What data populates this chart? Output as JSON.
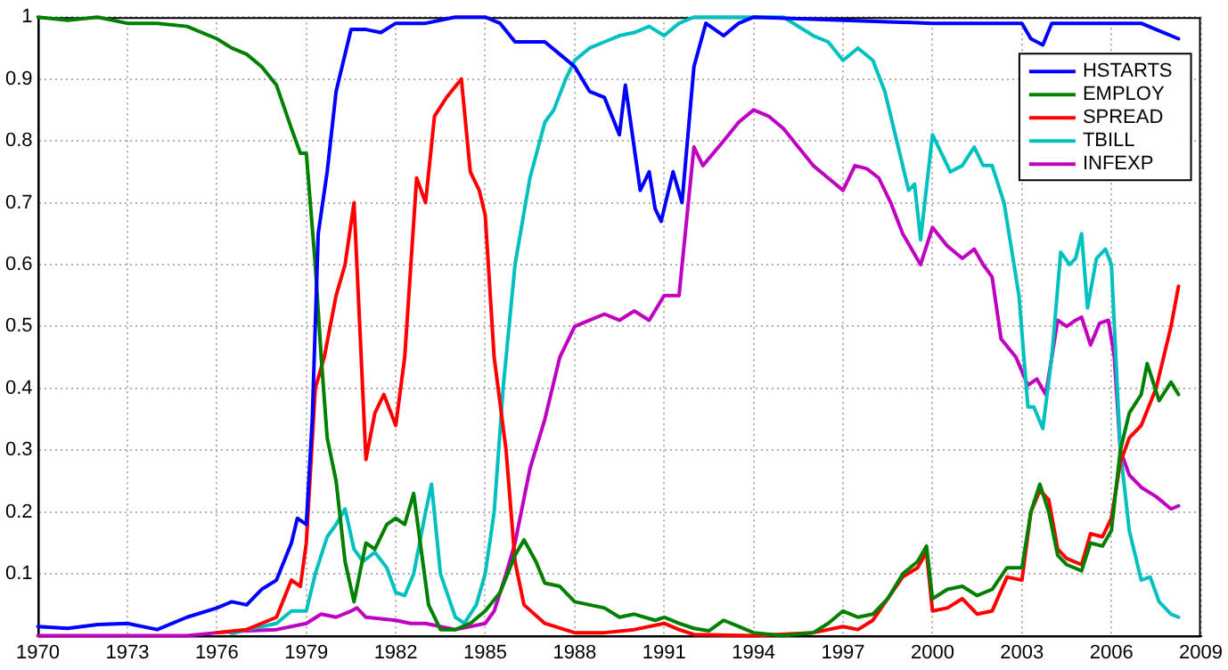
{
  "chart_data": {
    "type": "line",
    "xlim": [
      1970,
      2009
    ],
    "xticks": [
      1970,
      1973,
      1976,
      1979,
      1982,
      1985,
      1988,
      1991,
      1994,
      1997,
      2000,
      2003,
      2006,
      {
        "value": 2009,
        "label": "2009"
      }
    ],
    "ylim": [
      0,
      1
    ],
    "yticks": [
      {
        "value": 0,
        "label": null
      },
      0.1,
      0.2,
      0.3,
      0.4,
      0.5,
      0.6,
      0.7,
      0.8,
      0.9,
      1
    ],
    "grid": true,
    "legend": "top right",
    "marker": "none",
    "line_style": "solid",
    "series": [
      {
        "name": "HSTARTS",
        "color": "#0000ff",
        "x": [
          1970,
          1971,
          1972,
          1973,
          1974,
          1975,
          1976,
          1976.5,
          1977,
          1977.5,
          1978,
          1978.5,
          1978.7,
          1979,
          1979.2,
          1979.4,
          1979.7,
          1980,
          1980.5,
          1981,
          1981.5,
          1982,
          1983,
          1984,
          1985,
          1985.5,
          1986,
          1987,
          1987.5,
          1988,
          1988.5,
          1989,
          1989.5,
          1989.7,
          1990.2,
          1990.5,
          1990.7,
          1990.9,
          1991.3,
          1991.6,
          1992,
          1992.4,
          1993,
          1993.5,
          1994,
          2000,
          2003,
          2003.3,
          2003.7,
          2004,
          2007,
          2007.5,
          2008.25
        ],
        "values": [
          0.015,
          0.012,
          0.018,
          0.02,
          0.01,
          0.03,
          0.045,
          0.055,
          0.05,
          0.075,
          0.09,
          0.15,
          0.19,
          0.18,
          0.35,
          0.65,
          0.75,
          0.88,
          0.98,
          0.98,
          0.975,
          0.99,
          0.99,
          1,
          1,
          0.99,
          0.96,
          0.96,
          0.94,
          0.92,
          0.88,
          0.87,
          0.81,
          0.89,
          0.72,
          0.75,
          0.69,
          0.67,
          0.75,
          0.7,
          0.92,
          0.99,
          0.97,
          0.99,
          1,
          0.99,
          0.99,
          0.965,
          0.955,
          0.99,
          0.99,
          0.98,
          0.965
        ]
      },
      {
        "name": "EMPLOY",
        "color": "#008000",
        "x": [
          1970,
          1971,
          1972,
          1973,
          1974,
          1975,
          1976,
          1976.5,
          1977,
          1977.5,
          1978,
          1978.5,
          1978.8,
          1979,
          1979.3,
          1979.5,
          1979.7,
          1980,
          1980.3,
          1980.6,
          1981,
          1981.3,
          1981.7,
          1982,
          1982.3,
          1982.6,
          1983.1,
          1983.5,
          1984,
          1984.5,
          1985,
          1985.5,
          1986,
          1986.3,
          1986.7,
          1987,
          1987.5,
          1988,
          1989,
          1989.5,
          1990,
          1990.7,
          1991,
          1991.5,
          1992,
          1992.5,
          1993,
          1993.5,
          1994,
          1995,
          1996,
          1996.5,
          1997,
          1997.5,
          1998,
          1998.5,
          1999,
          1999.5,
          1999.8,
          2000,
          2000.5,
          2001,
          2001.5,
          2002,
          2002.5,
          2003,
          2003.3,
          2003.6,
          2003.9,
          2004.2,
          2004.5,
          2005,
          2005.3,
          2005.7,
          2006,
          2006.3,
          2006.6,
          2007,
          2007.2,
          2007.6,
          2008,
          2008.25
        ],
        "values": [
          1,
          0.995,
          1,
          0.99,
          0.99,
          0.985,
          0.965,
          0.95,
          0.94,
          0.92,
          0.89,
          0.82,
          0.78,
          0.78,
          0.6,
          0.45,
          0.32,
          0.25,
          0.12,
          0.055,
          0.15,
          0.14,
          0.18,
          0.19,
          0.18,
          0.23,
          0.05,
          0.01,
          0.01,
          0.02,
          0.04,
          0.07,
          0.13,
          0.155,
          0.12,
          0.085,
          0.08,
          0.055,
          0.045,
          0.03,
          0.035,
          0.025,
          0.03,
          0.02,
          0.012,
          0.008,
          0.025,
          0.015,
          0.005,
          0,
          0.005,
          0.02,
          0.04,
          0.03,
          0.035,
          0.06,
          0.1,
          0.12,
          0.145,
          0.06,
          0.075,
          0.08,
          0.065,
          0.075,
          0.11,
          0.11,
          0.2,
          0.245,
          0.2,
          0.13,
          0.115,
          0.105,
          0.15,
          0.145,
          0.17,
          0.3,
          0.36,
          0.39,
          0.44,
          0.38,
          0.41,
          0.39
        ]
      },
      {
        "name": "SPREAD",
        "color": "#ff0000",
        "x": [
          1976,
          1977,
          1978,
          1978.5,
          1978.8,
          1979,
          1979.3,
          1979.6,
          1980,
          1980.3,
          1980.6,
          1981,
          1981.3,
          1981.6,
          1982,
          1982.3,
          1982.7,
          1983,
          1983.3,
          1983.7,
          1984.2,
          1984.5,
          1984.8,
          1985,
          1985.3,
          1985.7,
          1986,
          1986.3,
          1987,
          1988,
          1989,
          1990,
          1991,
          1991.5,
          1992,
          1994,
          1996,
          1997,
          1997.5,
          1998,
          1998.5,
          1999,
          1999.5,
          1999.8,
          2000,
          2000.5,
          2001,
          2001.5,
          2002,
          2002.5,
          2003,
          2003.3,
          2003.6,
          2003.9,
          2004.2,
          2004.5,
          2005,
          2005.3,
          2005.7,
          2006,
          2006.3,
          2006.6,
          2007,
          2007.5,
          2008,
          2008.25
        ],
        "values": [
          0.005,
          0.01,
          0.03,
          0.09,
          0.08,
          0.15,
          0.4,
          0.45,
          0.55,
          0.6,
          0.7,
          0.285,
          0.36,
          0.39,
          0.34,
          0.45,
          0.74,
          0.7,
          0.84,
          0.87,
          0.9,
          0.75,
          0.72,
          0.68,
          0.45,
          0.3,
          0.12,
          0.05,
          0.02,
          0.005,
          0.005,
          0.01,
          0.02,
          0.01,
          0.002,
          0,
          0.005,
          0.015,
          0.01,
          0.025,
          0.06,
          0.095,
          0.11,
          0.135,
          0.04,
          0.045,
          0.06,
          0.035,
          0.04,
          0.095,
          0.09,
          0.2,
          0.235,
          0.22,
          0.14,
          0.125,
          0.115,
          0.165,
          0.16,
          0.19,
          0.28,
          0.32,
          0.34,
          0.4,
          0.5,
          0.565
        ]
      },
      {
        "name": "TBILL",
        "color": "#00c0c0",
        "x": [
          1976.5,
          1977,
          1977.5,
          1978,
          1978.5,
          1979,
          1979.3,
          1979.7,
          1980,
          1980.3,
          1980.6,
          1980.9,
          1981.3,
          1981.7,
          1982,
          1982.3,
          1982.6,
          1983,
          1983.2,
          1983.5,
          1984,
          1984.3,
          1984.7,
          1985,
          1985.3,
          1985.6,
          1986,
          1986.5,
          1987,
          1987.3,
          1987.7,
          1988,
          1988.5,
          1989,
          1989.5,
          1990,
          1990.5,
          1991,
          1991.5,
          1992,
          1995,
          1996,
          1996.5,
          1997,
          1997.5,
          1998,
          1998.4,
          1998.8,
          1999.2,
          1999.4,
          1999.6,
          2000,
          2000.6,
          2001,
          2001.4,
          2001.7,
          2002,
          2002.4,
          2002.9,
          2003.2,
          2003.4,
          2003.7,
          2004,
          2004.3,
          2004.6,
          2004.8,
          2005,
          2005.2,
          2005.5,
          2005.8,
          2006,
          2006.3,
          2006.6,
          2007,
          2007.3,
          2007.6,
          2008,
          2008.25
        ],
        "values": [
          0.003,
          0.01,
          0.015,
          0.02,
          0.04,
          0.04,
          0.1,
          0.16,
          0.18,
          0.205,
          0.14,
          0.12,
          0.135,
          0.11,
          0.07,
          0.065,
          0.1,
          0.2,
          0.245,
          0.1,
          0.03,
          0.02,
          0.05,
          0.1,
          0.2,
          0.4,
          0.6,
          0.74,
          0.83,
          0.85,
          0.9,
          0.93,
          0.95,
          0.96,
          0.97,
          0.975,
          0.985,
          0.97,
          0.99,
          1,
          1,
          0.97,
          0.96,
          0.93,
          0.95,
          0.93,
          0.88,
          0.8,
          0.72,
          0.73,
          0.64,
          0.81,
          0.75,
          0.76,
          0.79,
          0.76,
          0.76,
          0.7,
          0.55,
          0.37,
          0.37,
          0.335,
          0.45,
          0.62,
          0.6,
          0.61,
          0.65,
          0.53,
          0.61,
          0.625,
          0.6,
          0.3,
          0.17,
          0.09,
          0.095,
          0.055,
          0.035,
          0.03
        ]
      },
      {
        "name": "INFEXP",
        "color": "#c000c0",
        "x": [
          1970,
          1975,
          1976,
          1977,
          1978,
          1979,
          1979.5,
          1980,
          1980.5,
          1980.7,
          1981,
          1982,
          1982.5,
          1983,
          1984,
          1985,
          1985.3,
          1985.7,
          1986,
          1986.5,
          1987,
          1987.5,
          1988,
          1988.5,
          1989,
          1989.5,
          1990,
          1990.5,
          1991,
          1991.5,
          1992,
          1992.3,
          1993,
          1993.5,
          1994,
          1994.5,
          1995,
          1995.5,
          1996,
          1996.5,
          1997,
          1997.4,
          1997.8,
          1998.2,
          1998.6,
          1999,
          1999.6,
          2000,
          2000.5,
          2001,
          2001.4,
          2001.7,
          2002,
          2002.3,
          2002.8,
          2003.2,
          2003.5,
          2003.8,
          2004.2,
          2004.5,
          2004.8,
          2005,
          2005.3,
          2005.6,
          2005.9,
          2006.1,
          2006.3,
          2006.6,
          2007,
          2007.5,
          2008,
          2008.25
        ],
        "values": [
          0,
          0,
          0.005,
          0.008,
          0.01,
          0.02,
          0.035,
          0.03,
          0.04,
          0.045,
          0.03,
          0.025,
          0.02,
          0.02,
          0.01,
          0.02,
          0.04,
          0.1,
          0.15,
          0.27,
          0.35,
          0.45,
          0.5,
          0.51,
          0.52,
          0.51,
          0.525,
          0.51,
          0.55,
          0.55,
          0.79,
          0.76,
          0.8,
          0.83,
          0.85,
          0.84,
          0.82,
          0.79,
          0.76,
          0.74,
          0.72,
          0.76,
          0.755,
          0.74,
          0.7,
          0.65,
          0.6,
          0.66,
          0.63,
          0.61,
          0.625,
          0.6,
          0.58,
          0.48,
          0.45,
          0.405,
          0.415,
          0.39,
          0.51,
          0.5,
          0.51,
          0.515,
          0.47,
          0.505,
          0.51,
          0.45,
          0.3,
          0.26,
          0.24,
          0.225,
          0.205,
          0.21
        ]
      }
    ]
  }
}
